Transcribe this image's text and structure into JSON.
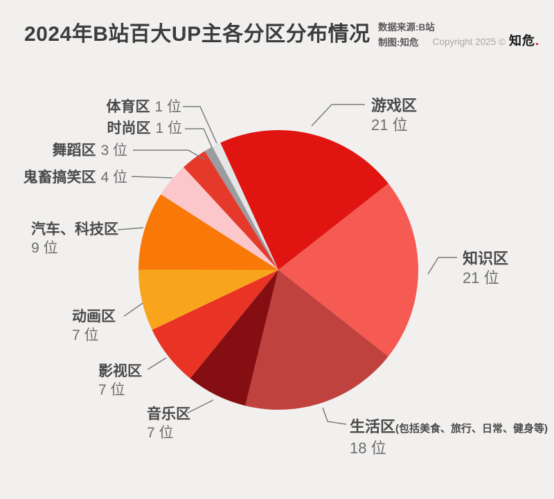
{
  "header": {
    "title": "2024年B站百大UP主各分区分布情况",
    "source_line1": "数据来源:B站",
    "source_line2": "制图:知危",
    "copyright_prefix": "Copyright 2025 ©",
    "brand": "知危",
    "brand_dot": "."
  },
  "chart_data": {
    "type": "pie",
    "title": "2024年B站百大UP主各分区分布情况",
    "unit": "位",
    "total": 99,
    "start_angle_deg": -24.5,
    "direction": "clockwise",
    "legend_position": "callouts",
    "slices": [
      {
        "key": "gaming",
        "label": "游戏区",
        "value": 21,
        "color": "#E01511"
      },
      {
        "key": "knowledge",
        "label": "知识区",
        "value": 21,
        "color": "#F55A53"
      },
      {
        "key": "lifestyle",
        "label": "生活区(包括美食、旅行、日常、健身等)",
        "value": 18,
        "color": "#BF423E"
      },
      {
        "key": "music",
        "label": "音乐区",
        "value": 7,
        "color": "#850E12"
      },
      {
        "key": "film",
        "label": "影视区",
        "value": 7,
        "color": "#E93425"
      },
      {
        "key": "animation",
        "label": "动画区",
        "value": 7,
        "color": "#F9A51C"
      },
      {
        "key": "auto-tech",
        "label": "汽车、科技区",
        "value": 9,
        "color": "#F87808"
      },
      {
        "key": "guichu",
        "label": "鬼畜搞笑区",
        "value": 4,
        "color": "#FBC7CA"
      },
      {
        "key": "dance",
        "label": "舞蹈区",
        "value": 3,
        "color": "#E5392B"
      },
      {
        "key": "fashion",
        "label": "时尚区",
        "value": 1,
        "color": "#9B9CA0"
      },
      {
        "key": "sports",
        "label": "体育区",
        "value": 1,
        "color": "#E3E5E7"
      }
    ]
  },
  "callouts": {
    "sports": {
      "name": "体育区",
      "count": "1 位"
    },
    "fashion": {
      "name": "时尚区",
      "count": "1 位"
    },
    "dance": {
      "name": "舞蹈区",
      "count": "3 位"
    },
    "guichu": {
      "name": "鬼畜搞笑区",
      "count": "4 位"
    },
    "auto": {
      "name": "汽车、科技区",
      "count": "9 位"
    },
    "animation": {
      "name": "动画区",
      "count": "7 位"
    },
    "film": {
      "name": "影视区",
      "count": "7 位"
    },
    "music": {
      "name": "音乐区",
      "count": "7 位"
    },
    "gaming": {
      "name": "游戏区",
      "count": "21 位"
    },
    "knowledge": {
      "name": "知识区",
      "count": "21 位"
    },
    "lifestyle": {
      "name": "生活区",
      "paren": "(包括美食、旅行、日常、健身等)",
      "count": "18 位"
    }
  }
}
